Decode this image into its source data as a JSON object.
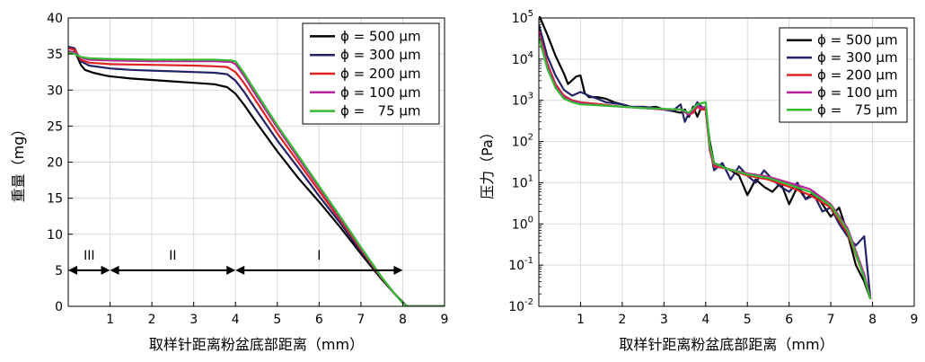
{
  "chart_data": [
    {
      "type": "line",
      "ylabel": "重量（mg）",
      "xlabel": "取样针距离粉盆底部距离（mm）",
      "xlim": [
        0,
        9
      ],
      "ylim": [
        0,
        40
      ],
      "xticks": [
        "1",
        "2",
        "3",
        "4",
        "5",
        "6",
        "7",
        "8",
        "9"
      ],
      "yticks": [
        "0",
        "5",
        "10",
        "15",
        "20",
        "25",
        "30",
        "35",
        "40"
      ],
      "grid": true,
      "legend_position": "top-right",
      "region_labels": [
        {
          "label": "III",
          "x_from": 0,
          "x_to": 1
        },
        {
          "label": "II",
          "x_from": 1,
          "x_to": 4
        },
        {
          "label": "I",
          "x_from": 4,
          "x_to": 8
        }
      ],
      "region_arrow_y": 5,
      "series": [
        {
          "name": "ϕ = 500 μm",
          "color": "#000000",
          "x": [
            0,
            0.15,
            0.3,
            0.4,
            0.6,
            0.9,
            1.0,
            1.5,
            2.0,
            2.5,
            3.0,
            3.5,
            3.8,
            4.0,
            4.2,
            4.5,
            5.0,
            5.5,
            6.0,
            6.5,
            7.0,
            7.5,
            7.8,
            8.0,
            8.1,
            8.3,
            9.0
          ],
          "y": [
            36,
            35.5,
            33.5,
            32.8,
            32.4,
            32.0,
            31.9,
            31.6,
            31.4,
            31.2,
            31.0,
            30.8,
            30.4,
            29.5,
            28.0,
            25.5,
            21.5,
            17.8,
            14.5,
            11.0,
            7.3,
            3.7,
            1.8,
            0.6,
            0.0,
            0.0,
            0.0
          ]
        },
        {
          "name": "ϕ = 300 μm",
          "color": "#222266",
          "x": [
            0,
            0.15,
            0.3,
            0.5,
            1.0,
            1.5,
            2.0,
            2.5,
            3.0,
            3.5,
            3.8,
            4.0,
            4.2,
            4.5,
            5.0,
            5.5,
            6.0,
            6.5,
            7.0,
            7.5,
            7.8,
            8.0,
            8.1,
            8.3,
            9.0
          ],
          "y": [
            36,
            35.8,
            34.0,
            33.4,
            33.0,
            32.8,
            32.7,
            32.6,
            32.5,
            32.4,
            32.2,
            31.3,
            29.8,
            27.2,
            23.0,
            19.2,
            15.3,
            11.6,
            7.6,
            3.8,
            1.8,
            0.5,
            0.0,
            0.0,
            0.0
          ]
        },
        {
          "name": "ϕ = 200 μm",
          "color": "#dd2222",
          "x": [
            0,
            0.15,
            0.3,
            0.5,
            1.0,
            2.0,
            3.0,
            3.5,
            3.8,
            4.0,
            4.2,
            4.5,
            5.0,
            5.5,
            6.0,
            6.5,
            7.0,
            7.5,
            7.8,
            8.0,
            8.1,
            8.3,
            9.0
          ],
          "y": [
            35.8,
            35.6,
            34.2,
            33.8,
            33.6,
            33.5,
            33.4,
            33.3,
            33.2,
            32.5,
            31.0,
            28.4,
            24.0,
            20.0,
            16.0,
            12.0,
            7.9,
            3.9,
            1.8,
            0.5,
            0.0,
            0.0,
            0.0
          ]
        },
        {
          "name": "ϕ = 100 μm",
          "color": "#bb2299",
          "x": [
            0,
            0.15,
            0.3,
            0.5,
            1.0,
            2.0,
            3.0,
            3.5,
            3.9,
            4.0,
            4.2,
            4.5,
            5.0,
            5.5,
            6.0,
            6.5,
            7.0,
            7.5,
            7.8,
            8.0,
            8.1,
            8.3,
            9.0
          ],
          "y": [
            35.4,
            35.2,
            34.5,
            34.2,
            34.1,
            34.0,
            34.0,
            34.0,
            33.9,
            33.6,
            32.0,
            29.2,
            24.8,
            20.6,
            16.5,
            12.3,
            8.1,
            4.0,
            1.8,
            0.5,
            0.0,
            0.0,
            0.0
          ]
        },
        {
          "name": "ϕ =   75 μm",
          "color": "#33bb33",
          "x": [
            0,
            0.15,
            0.3,
            0.5,
            1.0,
            2.0,
            3.0,
            3.5,
            3.9,
            4.0,
            4.2,
            4.5,
            5.0,
            5.5,
            6.0,
            6.5,
            7.0,
            7.5,
            7.8,
            8.0,
            8.1,
            8.3,
            9.0
          ],
          "y": [
            35.2,
            35.0,
            34.6,
            34.4,
            34.3,
            34.2,
            34.2,
            34.2,
            34.1,
            34.0,
            32.4,
            29.6,
            25.1,
            20.9,
            16.7,
            12.5,
            8.2,
            4.0,
            1.8,
            0.5,
            0.0,
            0.0,
            0.0
          ]
        }
      ]
    },
    {
      "type": "line",
      "ylabel": "压力（Pa）",
      "xlabel": "取样针距离粉盆底部距离（mm）",
      "xlim": [
        0,
        9
      ],
      "ylim": [
        0.01,
        100000
      ],
      "yscale": "log",
      "xticks": [
        "1",
        "2",
        "3",
        "4",
        "5",
        "6",
        "7",
        "8",
        "9"
      ],
      "yticks": [
        {
          "base": "10",
          "exp": "-2",
          "value": 0.01
        },
        {
          "base": "10",
          "exp": "-1",
          "value": 0.1
        },
        {
          "base": "10",
          "exp": "0",
          "value": 1
        },
        {
          "base": "10",
          "exp": "1",
          "value": 10
        },
        {
          "base": "10",
          "exp": "2",
          "value": 100
        },
        {
          "base": "10",
          "exp": "3",
          "value": 1000
        },
        {
          "base": "10",
          "exp": "4",
          "value": 10000
        },
        {
          "base": "10",
          "exp": "5",
          "value": 100000
        }
      ],
      "grid": true,
      "legend_position": "top-right",
      "series": [
        {
          "name": "ϕ = 500 μm",
          "color": "#000000",
          "x": [
            0,
            0.2,
            0.4,
            0.6,
            0.7,
            0.9,
            1.0,
            1.1,
            1.2,
            1.4,
            1.6,
            1.8,
            2.0,
            2.2,
            2.5,
            2.8,
            3.0,
            3.2,
            3.4,
            3.5,
            3.6,
            3.7,
            3.8,
            3.9,
            4.0,
            4.1,
            4.2,
            4.4,
            4.6,
            4.8,
            5.0,
            5.2,
            5.4,
            5.6,
            5.8,
            6.0,
            6.2,
            6.4,
            6.6,
            6.8,
            7.0,
            7.2,
            7.4,
            7.6,
            7.8,
            7.95
          ],
          "y": [
            120000,
            40000,
            12000,
            4500,
            2500,
            3800,
            4000,
            1500,
            1200,
            1200,
            1100,
            900,
            800,
            700,
            650,
            700,
            600,
            550,
            500,
            600,
            400,
            700,
            400,
            700,
            600,
            100,
            30,
            25,
            20,
            15,
            5,
            12,
            8,
            6,
            10,
            3,
            8,
            4,
            6,
            3,
            1.5,
            2.5,
            0.6,
            0.1,
            0.04,
            0.015
          ]
        },
        {
          "name": "ϕ = 300 μm",
          "color": "#222266",
          "x": [
            0,
            0.2,
            0.4,
            0.6,
            0.8,
            1.0,
            1.2,
            1.4,
            1.6,
            1.8,
            2.0,
            2.2,
            2.5,
            2.8,
            3.0,
            3.2,
            3.4,
            3.5,
            3.6,
            3.7,
            3.8,
            3.9,
            4.0,
            4.1,
            4.2,
            4.4,
            4.6,
            4.8,
            5.0,
            5.2,
            5.4,
            5.6,
            5.8,
            6.0,
            6.2,
            6.4,
            6.6,
            6.8,
            7.0,
            7.2,
            7.4,
            7.6,
            7.8,
            7.95
          ],
          "y": [
            70000,
            12000,
            4000,
            1800,
            1300,
            1600,
            1300,
            1100,
            900,
            850,
            800,
            700,
            700,
            650,
            600,
            550,
            800,
            300,
            500,
            600,
            900,
            700,
            600,
            80,
            20,
            30,
            12,
            25,
            15,
            10,
            20,
            12,
            8,
            6,
            10,
            4,
            5,
            2,
            2.5,
            1.0,
            0.5,
            0.3,
            0.5,
            0.015
          ]
        },
        {
          "name": "ϕ = 200 μm",
          "color": "#dd2222",
          "x": [
            0,
            0.2,
            0.4,
            0.6,
            0.8,
            1.0,
            1.5,
            2.0,
            2.5,
            3.0,
            3.4,
            3.6,
            3.7,
            3.8,
            3.9,
            4.0,
            4.1,
            4.2,
            4.5,
            5.0,
            5.5,
            6.0,
            6.5,
            7.0,
            7.4,
            7.8,
            7.95
          ],
          "y": [
            50000,
            8000,
            2500,
            1300,
            1000,
            900,
            800,
            700,
            650,
            600,
            600,
            450,
            500,
            700,
            600,
            600,
            60,
            25,
            22,
            15,
            12,
            8,
            5,
            2.5,
            0.6,
            0.05,
            0.015
          ]
        },
        {
          "name": "ϕ = 100 μm",
          "color": "#bb2299",
          "x": [
            0,
            0.2,
            0.4,
            0.6,
            0.8,
            1.0,
            1.5,
            2.0,
            2.5,
            3.0,
            3.4,
            3.6,
            3.8,
            3.9,
            4.0,
            4.1,
            4.2,
            4.5,
            5.0,
            5.5,
            6.0,
            6.5,
            7.0,
            7.4,
            7.8,
            7.95
          ],
          "y": [
            45000,
            7000,
            2200,
            1200,
            950,
            850,
            750,
            700,
            650,
            600,
            600,
            450,
            750,
            650,
            700,
            70,
            28,
            22,
            17,
            14,
            10,
            7,
            3,
            0.8,
            0.06,
            0.015
          ]
        },
        {
          "name": "ϕ =   75 μm",
          "color": "#33bb33",
          "x": [
            0,
            0.2,
            0.4,
            0.6,
            0.8,
            1.0,
            1.5,
            2.0,
            2.5,
            3.0,
            3.4,
            3.6,
            3.8,
            3.9,
            4.0,
            4.1,
            4.2,
            4.5,
            5.0,
            5.5,
            6.0,
            6.5,
            7.0,
            7.4,
            7.8,
            7.95
          ],
          "y": [
            35000,
            6000,
            2000,
            1100,
            900,
            800,
            750,
            700,
            650,
            620,
            600,
            500,
            800,
            850,
            900,
            80,
            30,
            22,
            16,
            13,
            9,
            6,
            2.8,
            0.7,
            0.05,
            0.015
          ]
        }
      ]
    }
  ]
}
